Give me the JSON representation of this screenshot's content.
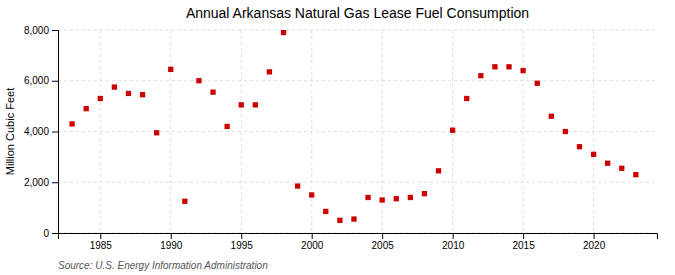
{
  "chart_data": {
    "type": "scatter",
    "title": "Annual Arkansas Natural Gas Lease Fuel Consumption",
    "y_label": "Million Cubic Feet",
    "source": "Source: U.S. Energy Information Administration",
    "color": "#cc0000",
    "marker": "square",
    "grid": true,
    "xlim": [
      1982,
      2024.5
    ],
    "ylim": [
      0,
      8000
    ],
    "xticks": [
      1985,
      1990,
      1995,
      2000,
      2005,
      2010,
      2015,
      2020
    ],
    "yticks": [
      0,
      {
        "value": 2000,
        "label": "2,000"
      },
      {
        "value": 4000,
        "label": "4,000"
      },
      {
        "value": 6000,
        "label": "6,000"
      },
      {
        "value": 8000,
        "label": "8,000"
      }
    ],
    "x": [
      1983,
      1984,
      1985,
      1986,
      1987,
      1988,
      1989,
      1990,
      1991,
      1992,
      1993,
      1994,
      1995,
      1996,
      1997,
      1998,
      1999,
      2000,
      2001,
      2002,
      2003,
      2004,
      2005,
      2006,
      2007,
      2008,
      2009,
      2010,
      2011,
      2012,
      2013,
      2014,
      2015,
      2016,
      2017,
      2018,
      2019,
      2020,
      2021,
      2022,
      2023
    ],
    "values": [
      4300,
      4900,
      5300,
      5750,
      5500,
      5450,
      3950,
      6450,
      1250,
      6000,
      5550,
      4200,
      5050,
      5050,
      6350,
      7900,
      1850,
      1500,
      850,
      500,
      550,
      1400,
      1300,
      1350,
      1400,
      1550,
      2450,
      4050,
      5300,
      6200,
      6550,
      6550,
      6400,
      5900,
      4600,
      4000,
      3400,
      3100,
      2750,
      2550,
      2300
    ]
  }
}
